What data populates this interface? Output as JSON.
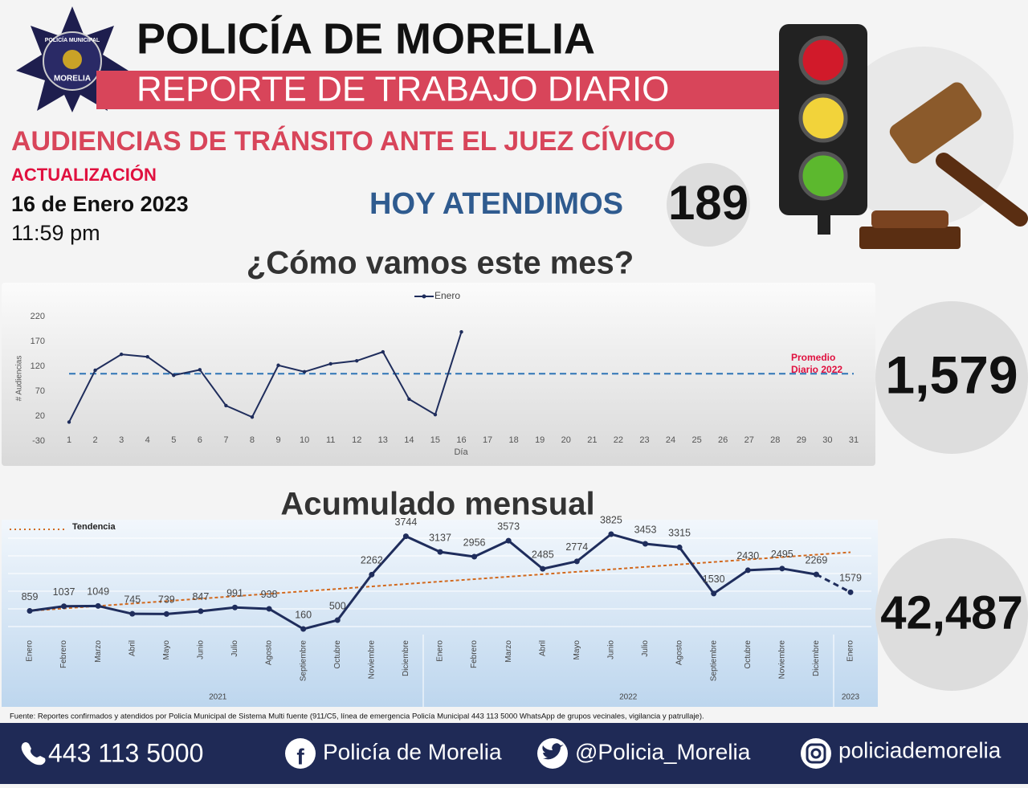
{
  "header": {
    "title": "POLICÍA DE MORELIA",
    "subtitle": "REPORTE DE TRABAJO DIARIO",
    "badge_top": "POLICÍA MUNICIPAL",
    "badge_bottom": "MORELIA"
  },
  "heading": "AUDIENCIAS DE TRÁNSITO ANTE EL JUEZ CÍVICO",
  "update": {
    "label": "ACTUALIZACIÓN",
    "date": "16 de Enero 2023",
    "time": "11:59 pm"
  },
  "today": {
    "label": "HOY ATENDIMOS",
    "value": "189"
  },
  "month_title": "¿Cómo vamos este mes?",
  "month_total": "1,579",
  "cumulative_title": "Acumulado mensual",
  "cumulative_total": "42,487",
  "chart_data": [
    {
      "type": "line",
      "y_label": "# Audiencias",
      "x_label": "Día",
      "categories": [
        1,
        2,
        3,
        4,
        5,
        6,
        7,
        8,
        9,
        10,
        11,
        12,
        13,
        14,
        15,
        16,
        17,
        18,
        19,
        20,
        21,
        22,
        23,
        24,
        25,
        26,
        27,
        28,
        29,
        30,
        31
      ],
      "series": [
        {
          "name": "Enero",
          "color": "#1f2d5c",
          "values": [
            8,
            112,
            144,
            139,
            102,
            113,
            41,
            18,
            122,
            109,
            125,
            131,
            149,
            54,
            23,
            189,
            null,
            null,
            null,
            null,
            null,
            null,
            null,
            null,
            null,
            null,
            null,
            null,
            null,
            null,
            null
          ]
        }
      ],
      "reference": {
        "lines": [
          "Promedio",
          "Diario 2022"
        ],
        "value": 105,
        "color": "#2e75b6",
        "label_color": "#e0103f"
      },
      "ylim": [
        -30,
        220
      ],
      "yticks": [
        -30,
        20,
        70,
        120,
        170,
        220
      ]
    },
    {
      "type": "line",
      "categories": [
        "Enero",
        "Febrero",
        "Marzo",
        "Abril",
        "Mayo",
        "Junio",
        "Julio",
        "Agosto",
        "Septiembre",
        "Octubre",
        "Noviembre",
        "Diciembre",
        "Enero",
        "Febrero",
        "Marzo",
        "Abril",
        "Mayo",
        "Junio",
        "Julio",
        "Agosto",
        "Septiembre",
        "Octubre",
        "Noviembre",
        "Diciembre",
        "Enero"
      ],
      "groups": [
        {
          "label": "2021",
          "count": 12
        },
        {
          "label": "2022",
          "count": 12
        },
        {
          "label": "2023",
          "count": 1
        }
      ],
      "series": [
        {
          "color": "#1f2d5c",
          "values": [
            859,
            1037,
            1049,
            745,
            739,
            847,
            991,
            938,
            160,
            500,
            2262,
            3744,
            3137,
            2956,
            3573,
            2485,
            2774,
            3825,
            3453,
            3315,
            1530,
            2430,
            2495,
            2269,
            1579
          ]
        }
      ],
      "trend": {
        "name": "Tendencia",
        "color": "#d2691e",
        "values": [
          859,
          3126
        ]
      },
      "dashed_last": true
    }
  ],
  "source": "Fuente: Reportes confirmados y atendidos por Policía Municipal de Sistema Multi fuente (911/C5, línea de emergencia Policía Municipal 443 113 5000 WhatsApp de grupos vecinales, vigilancia y patrullaje).",
  "footer": {
    "phone": "443 113 5000",
    "facebook": "Policía de Morelia",
    "twitter": "@Policia_Morelia",
    "instagram": "policiademorelia"
  }
}
